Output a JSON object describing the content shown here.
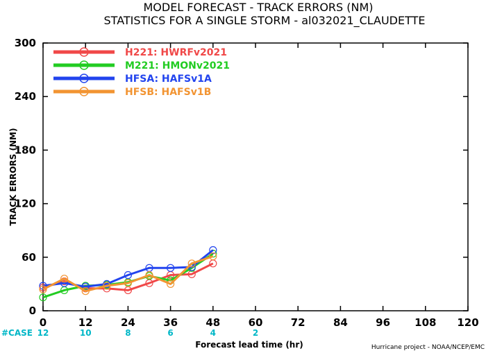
{
  "chart_data": {
    "type": "line",
    "title": "MODEL FORECAST - TRACK ERRORS (NM)",
    "subtitle": "STATISTICS FOR A SINGLE STORM - al032021_CLAUDETTE",
    "xlabel": "Forecast lead time (hr)",
    "ylabel": "TRACK ERRORS (NM)",
    "xlim": [
      0,
      120
    ],
    "ylim": [
      0,
      300
    ],
    "x_ticks": [
      "0",
      "12",
      "24",
      "36",
      "48",
      "60",
      "72",
      "84",
      "96",
      "108",
      "120"
    ],
    "y_ticks": [
      "0",
      "60",
      "120",
      "180",
      "240",
      "300"
    ],
    "legend_position": "top-left",
    "grid": false,
    "x": [
      0,
      6,
      12,
      18,
      24,
      30,
      36,
      42,
      48
    ],
    "series": [
      {
        "name": "H221: HWRFv2021",
        "color": "#f04848",
        "values": [
          26,
          33,
          25,
          25,
          23,
          31,
          40,
          41,
          53
        ]
      },
      {
        "name": "M221: HMONv2021",
        "color": "#22cc22",
        "values": [
          15,
          23,
          28,
          29,
          32,
          39,
          34,
          48,
          64
        ]
      },
      {
        "name": "HFSA: HAFSv1A",
        "color": "#2244ee",
        "values": [
          28,
          31,
          27,
          30,
          40,
          48,
          48,
          49,
          68
        ]
      },
      {
        "name": "HFSB: HAFSv1B",
        "color": "#f29432",
        "values": [
          24,
          36,
          22,
          28,
          31,
          40,
          30,
          53,
          61
        ]
      }
    ],
    "case_counts": {
      "label": "#CASE",
      "x": [
        0,
        12,
        24,
        36,
        48,
        60
      ],
      "values": [
        "12",
        "10",
        "8",
        "6",
        "4",
        "2"
      ]
    }
  },
  "credit": "Hurricane project - NOAA/NCEP/EMC"
}
